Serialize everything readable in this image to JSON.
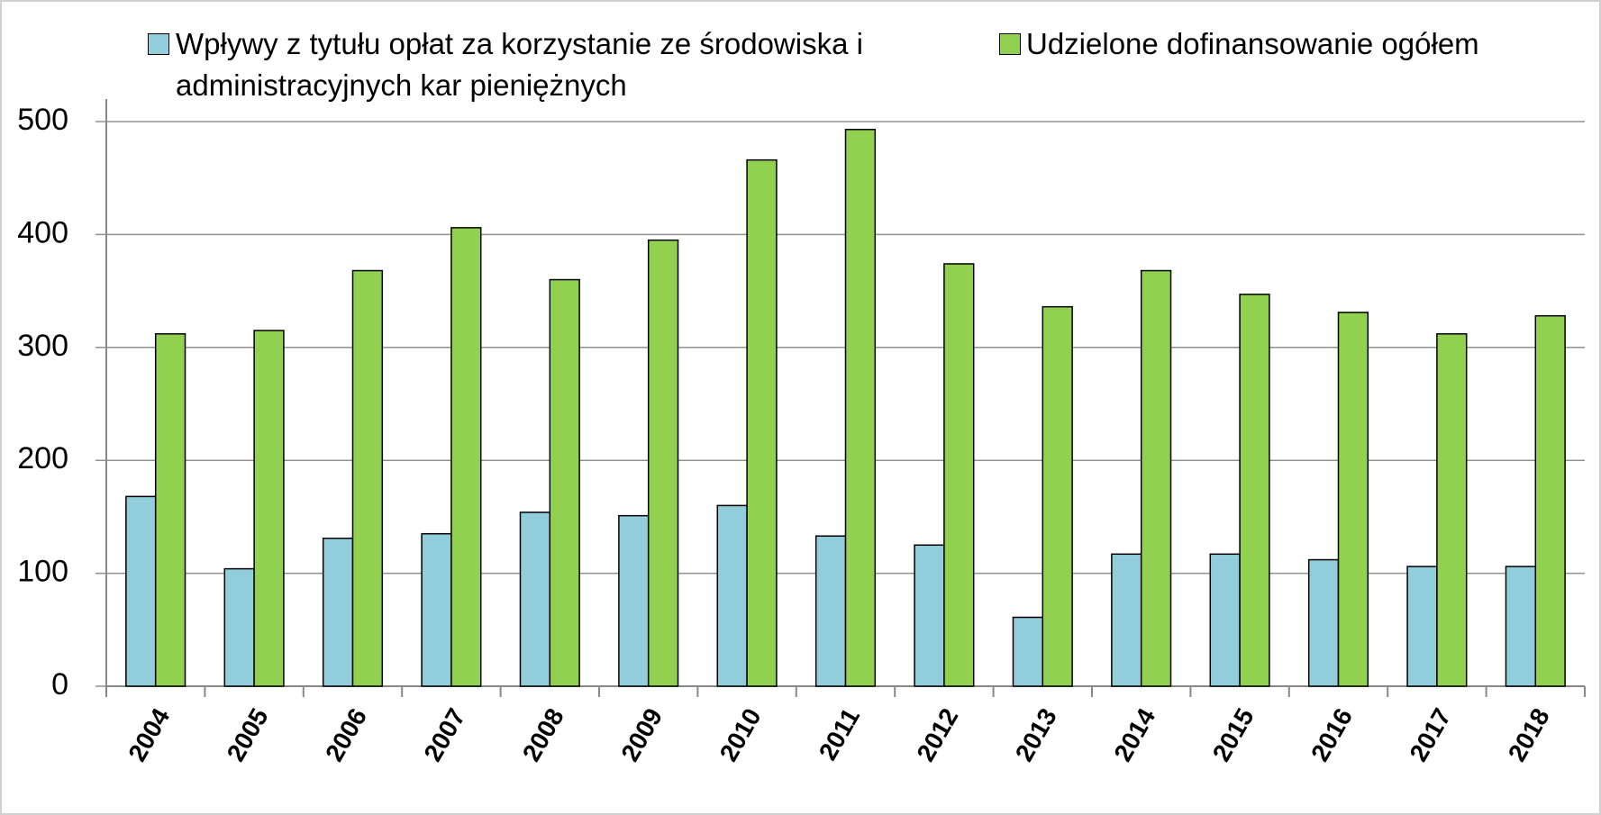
{
  "chart_data": {
    "type": "bar",
    "categories": [
      "2004",
      "2005",
      "2006",
      "2007",
      "2008",
      "2009",
      "2010",
      "2011",
      "2012",
      "2013",
      "2014",
      "2015",
      "2016",
      "2017",
      "2018"
    ],
    "series": [
      {
        "name": "Wpływy z tytułu opłat za korzystanie ze środowiska i administracyjnych kar pieniężnych",
        "color": "#92cddc",
        "values": [
          168,
          104,
          131,
          135,
          154,
          151,
          160,
          133,
          125,
          61,
          117,
          117,
          112,
          106,
          106
        ]
      },
      {
        "name": "Udzielone dofinansowanie ogółem",
        "color": "#92d050",
        "values": [
          312,
          315,
          368,
          406,
          360,
          395,
          466,
          493,
          374,
          336,
          368,
          347,
          331,
          312,
          328
        ]
      }
    ],
    "ylim": [
      0,
      500
    ],
    "yticks": [
      0,
      100,
      200,
      300,
      400,
      500
    ],
    "grid": true
  }
}
